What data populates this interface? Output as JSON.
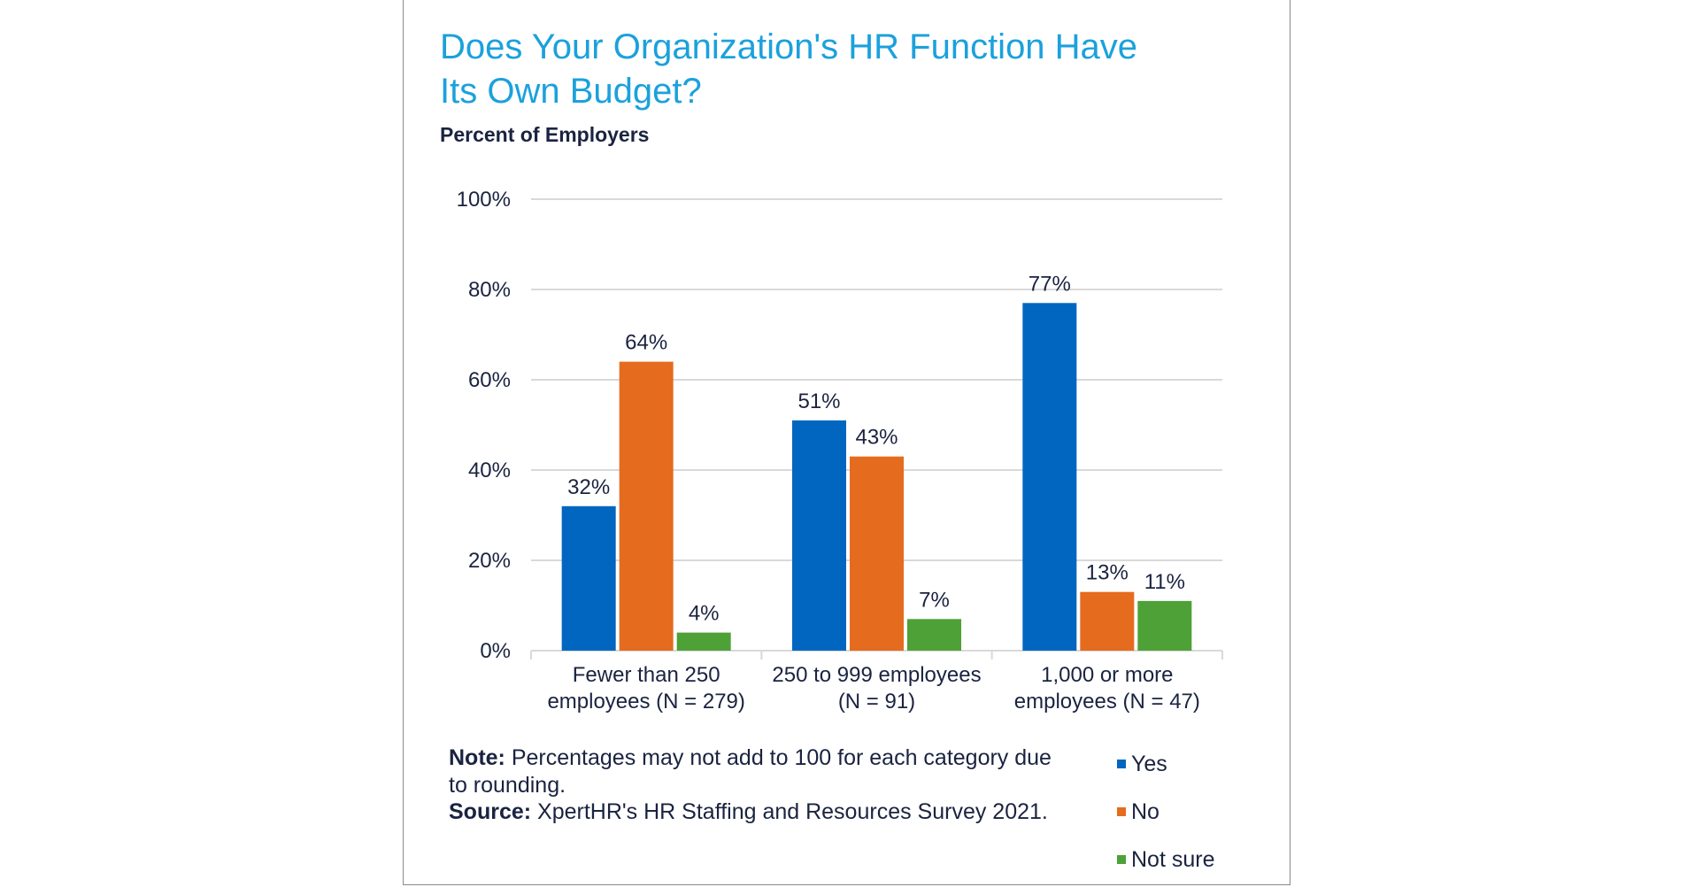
{
  "chart_data": {
    "type": "bar",
    "title": "Does Your Organization's HR Function Have Its Own Budget?",
    "title_lines": [
      "Does Your Organization's HR Function Have",
      "Its Own Budget?"
    ],
    "subtitle": "Percent of Employers",
    "categories": [
      [
        "Fewer than 250",
        "employees (N = 279)"
      ],
      [
        "250 to 999 employees",
        "(N = 91)"
      ],
      [
        "1,000 or more",
        "employees (N = 47)"
      ]
    ],
    "series": [
      {
        "name": "Yes",
        "color": "#0066c0",
        "values": [
          32,
          51,
          77
        ]
      },
      {
        "name": "No",
        "color": "#e56b1f",
        "values": [
          64,
          43,
          13
        ]
      },
      {
        "name": "Not sure",
        "color": "#4ea137",
        "values": [
          4,
          7,
          11
        ]
      }
    ],
    "ylim": [
      0,
      100
    ],
    "yticks": [
      "0%",
      "20%",
      "40%",
      "60%",
      "80%",
      "100%"
    ],
    "data_label_suffix": "%",
    "grid": true,
    "legend_position": "bottom-right",
    "xlabel": "",
    "ylabel": ""
  },
  "footer": {
    "note_label": "Note:",
    "note_text": " Percentages may not add to 100 for each category due to rounding.",
    "source_label": "Source:",
    "source_text": " XpertHR's HR Staffing and Resources Survey 2021."
  }
}
